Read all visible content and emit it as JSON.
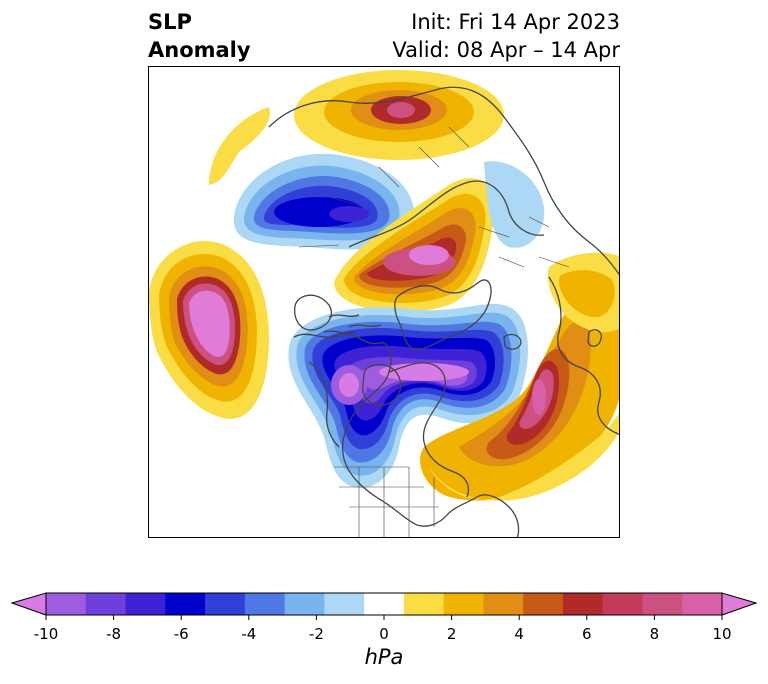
{
  "title": {
    "left_line1": "SLP",
    "left_line2": "Anomaly",
    "right_line1": "Init: Fri 14 Apr 2023",
    "right_line2": "Valid: 08 Apr – 14 Apr"
  },
  "colorbar": {
    "unit": "hPa",
    "ticks": [
      "-10",
      "-8",
      "-6",
      "-4",
      "-2",
      "0",
      "2",
      "4",
      "6",
      "8",
      "10"
    ],
    "colors": [
      "#d77be6",
      "#a05ce0",
      "#6f3fdc",
      "#3e22d6",
      "#0000cc",
      "#2f3fd8",
      "#4f78e4",
      "#79b4ee",
      "#acd8f5",
      "#ffffff",
      "#fadd44",
      "#f0b400",
      "#e08e14",
      "#c85a18",
      "#b02a28",
      "#c03c5a",
      "#cc5080",
      "#d860a8",
      "#e07cd8"
    ],
    "extend": "both"
  },
  "map": {
    "projection": "polar stereographic (North America / Arctic)",
    "anomalies": [
      {
        "sign": "positive",
        "region": "Siberia / Kamchatka",
        "peak_hpa": 8
      },
      {
        "sign": "negative",
        "region": "Kara / Barents Sea",
        "peak_hpa": -7
      },
      {
        "sign": "positive",
        "region": "Greenland / Arctic",
        "peak_hpa": 10
      },
      {
        "sign": "positive",
        "region": "Bering / North Pacific",
        "peak_hpa": 10
      },
      {
        "sign": "negative",
        "region": "Canada / Hudson Bay",
        "peak_hpa": -10
      },
      {
        "sign": "negative",
        "region": "Labrador Sea / North Atlantic",
        "peak_hpa": -10
      },
      {
        "sign": "positive",
        "region": "Central North Atlantic",
        "peak_hpa": 8
      },
      {
        "sign": "positive",
        "region": "Northern Europe",
        "peak_hpa": 4
      }
    ]
  }
}
